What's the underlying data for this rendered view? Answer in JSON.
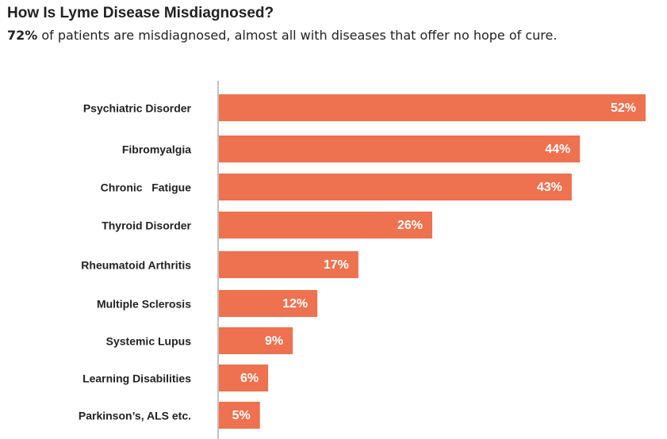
{
  "chart_data": {
    "type": "bar",
    "orientation": "horizontal",
    "title": "How Is Lyme Disease Misdiagnosed?",
    "subtitle": {
      "highlight": "72%",
      "text": " of patients are misdiagnosed, almost all with diseases that offer no hope of cure."
    },
    "categories": [
      "Psychiatric Disorder",
      "Fibromyalgia",
      "Chronic   Fatigue",
      "Thyroid Disorder",
      "Rheumatoid Arthritis",
      "Multiple Sclerosis",
      "Systemic Lupus",
      "Learning Disabilities",
      "Parkinson’s, ALS etc."
    ],
    "values": [
      52,
      44,
      43,
      26,
      17,
      12,
      9,
      6,
      5
    ],
    "value_labels": [
      "52%",
      "44%",
      "43%",
      "26%",
      "17%",
      "12%",
      "9%",
      "6%",
      "5%"
    ],
    "unit": "%",
    "xlabel": "",
    "ylabel": "",
    "xlim": [
      0,
      52
    ],
    "grid": false,
    "legend": "none",
    "colors": {
      "bar": "#ee7150",
      "axis": "#c0c0c0",
      "label": "#222222",
      "value_text": "#ffffff"
    }
  }
}
